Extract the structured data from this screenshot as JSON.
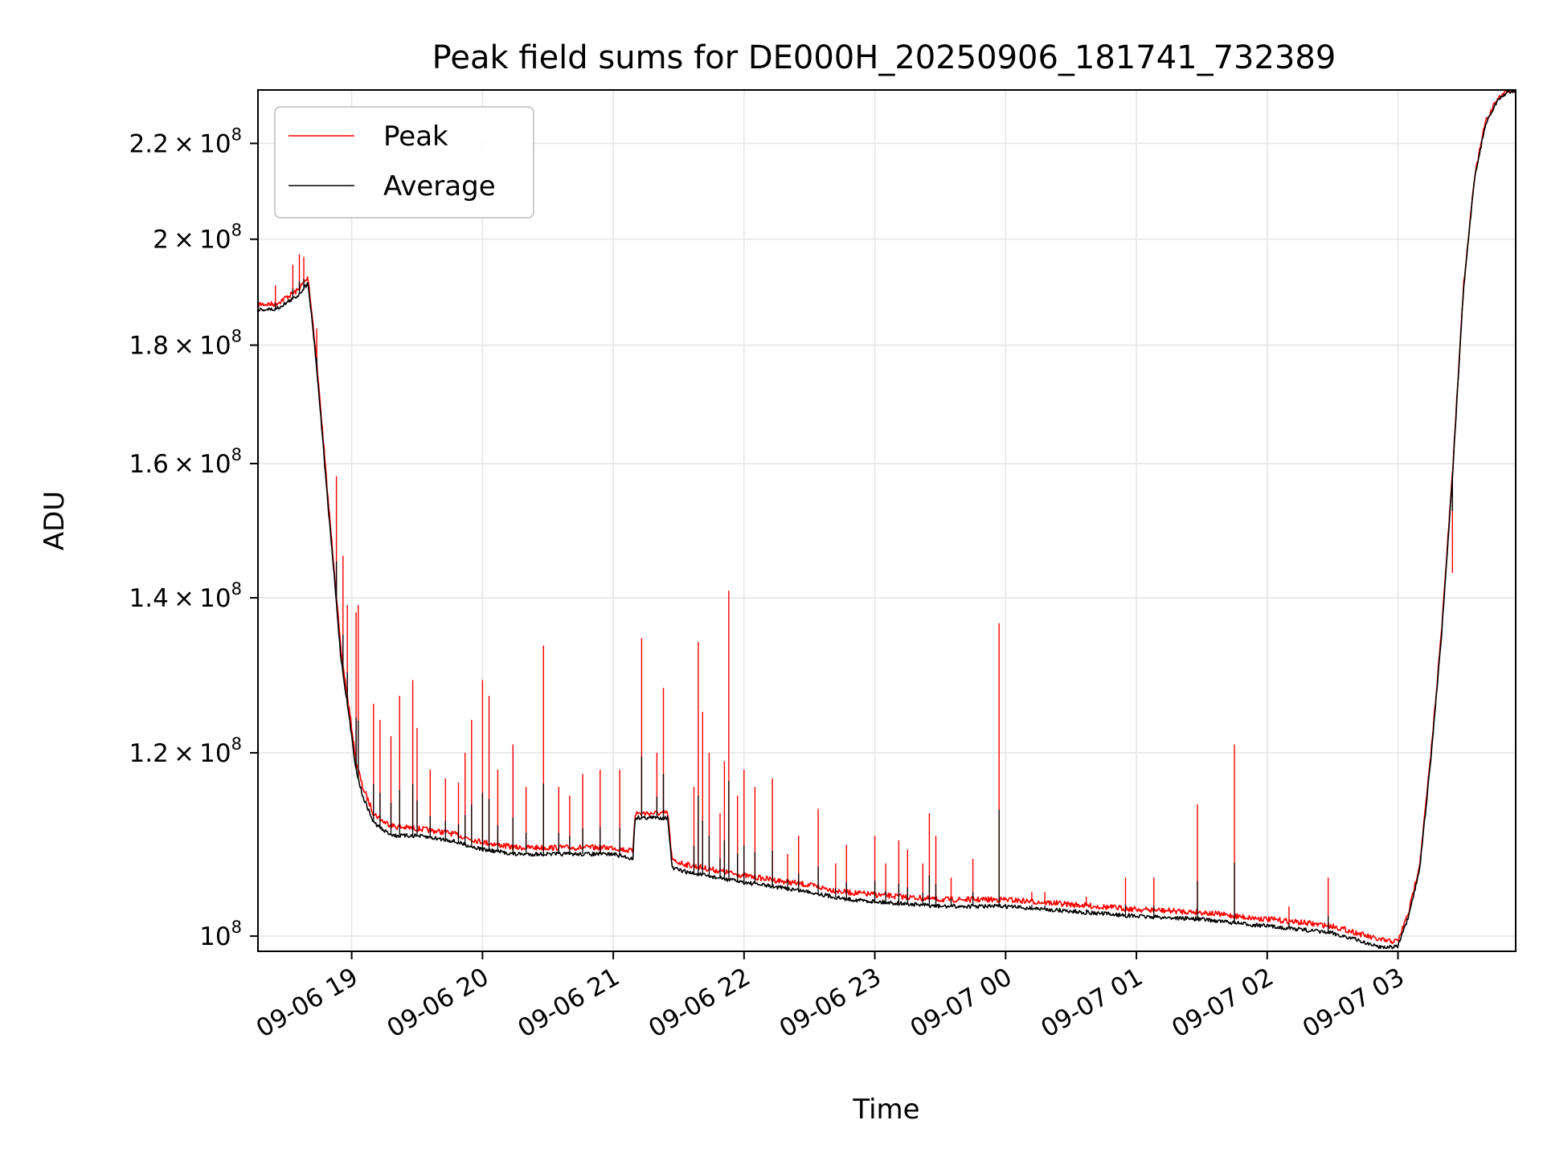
{
  "chart_data": {
    "type": "line",
    "title": "Peak field sums for DE000H_20250906_181741_732389",
    "xlabel": "Time",
    "ylabel": "ADU",
    "yscale": "log",
    "ylim": [
      98500000,
      232000000
    ],
    "xlim": [
      "2025-09-06 18:17",
      "2025-09-07 03:54"
    ],
    "grid": true,
    "legend_position": "top-left",
    "colors": {
      "Peak": "#ff0000",
      "Average": "#000000"
    },
    "x_ticks": [
      "09-06 19",
      "09-06 20",
      "09-06 21",
      "09-06 22",
      "09-06 23",
      "09-07 00",
      "09-07 01",
      "09-07 02",
      "09-07 03"
    ],
    "x_tick_times": [
      "2025-09-06 19:00",
      "2025-09-06 20:00",
      "2025-09-06 21:00",
      "2025-09-06 22:00",
      "2025-09-06 23:00",
      "2025-09-07 00:00",
      "2025-09-07 01:00",
      "2025-09-07 02:00",
      "2025-09-07 03:00"
    ],
    "y_ticks": [
      {
        "value": 100000000,
        "mantissa": "",
        "exp": "8"
      },
      {
        "value": 120000000,
        "mantissa": "1.2",
        "exp": "8"
      },
      {
        "value": 140000000,
        "mantissa": "1.4",
        "exp": "8"
      },
      {
        "value": 160000000,
        "mantissa": "1.6",
        "exp": "8"
      },
      {
        "value": 180000000,
        "mantissa": "1.8",
        "exp": "8"
      },
      {
        "value": 200000000,
        "mantissa": "2",
        "exp": "8"
      },
      {
        "value": 220000000,
        "mantissa": "2.2",
        "exp": "8"
      }
    ],
    "series": [
      {
        "name": "Average",
        "x": [
          "2025-09-06 18:17",
          "2025-09-06 18:25",
          "2025-09-06 18:35",
          "2025-09-06 18:40",
          "2025-09-06 18:43",
          "2025-09-06 18:46",
          "2025-09-06 18:49",
          "2025-09-06 18:52",
          "2025-09-06 18:55",
          "2025-09-06 18:59",
          "2025-09-06 19:02",
          "2025-09-06 19:05",
          "2025-09-06 19:10",
          "2025-09-06 19:15",
          "2025-09-06 19:20",
          "2025-09-06 19:30",
          "2025-09-06 19:45",
          "2025-09-06 20:00",
          "2025-09-06 20:15",
          "2025-09-06 20:30",
          "2025-09-06 20:45",
          "2025-09-06 21:00",
          "2025-09-06 21:09",
          "2025-09-06 21:10",
          "2025-09-06 21:25",
          "2025-09-06 21:27",
          "2025-09-06 21:35",
          "2025-09-06 22:00",
          "2025-09-06 22:30",
          "2025-09-06 22:45",
          "2025-09-06 23:00",
          "2025-09-06 23:30",
          "2025-09-07 00:00",
          "2025-09-07 00:30",
          "2025-09-07 01:00",
          "2025-09-07 01:30",
          "2025-09-07 01:50",
          "2025-09-07 02:10",
          "2025-09-07 02:30",
          "2025-09-07 02:40",
          "2025-09-07 02:50",
          "2025-09-07 02:55",
          "2025-09-07 03:00",
          "2025-09-07 03:05",
          "2025-09-07 03:10",
          "2025-09-07 03:15",
          "2025-09-07 03:20",
          "2025-09-07 03:25",
          "2025-09-07 03:30",
          "2025-09-07 03:35",
          "2025-09-07 03:40",
          "2025-09-07 03:45",
          "2025-09-07 03:50",
          "2025-09-07 03:54"
        ],
        "values": [
          186500000,
          186500000,
          189000000,
          191500000,
          180000000,
          167000000,
          154000000,
          143000000,
          132000000,
          124000000,
          118000000,
          115000000,
          112000000,
          111000000,
          110500000,
          110500000,
          110000000,
          109000000,
          108500000,
          108500000,
          108500000,
          108500000,
          108000000,
          112500000,
          112500000,
          107000000,
          106500000,
          105500000,
          104500000,
          103800000,
          103500000,
          103000000,
          103000000,
          102500000,
          102000000,
          101700000,
          101200000,
          100800000,
          100300000,
          99700000,
          99000000,
          98900000,
          99000000,
          102000000,
          107000000,
          119000000,
          135000000,
          158000000,
          190000000,
          212000000,
          224000000,
          229000000,
          231500000,
          232000000
        ]
      },
      {
        "name": "Peak",
        "x": [
          "2025-09-06 18:17",
          "2025-09-06 18:25",
          "2025-09-06 18:35",
          "2025-09-06 18:40",
          "2025-09-06 18:43",
          "2025-09-06 18:46",
          "2025-09-06 18:49",
          "2025-09-06 18:52",
          "2025-09-06 18:55",
          "2025-09-06 18:59",
          "2025-09-06 19:02",
          "2025-09-06 19:05",
          "2025-09-06 19:10",
          "2025-09-06 19:15",
          "2025-09-06 19:20",
          "2025-09-06 19:30",
          "2025-09-06 19:45",
          "2025-09-06 20:00",
          "2025-09-06 20:15",
          "2025-09-06 20:30",
          "2025-09-06 20:45",
          "2025-09-06 21:00",
          "2025-09-06 21:09",
          "2025-09-06 21:10",
          "2025-09-06 21:25",
          "2025-09-06 21:27",
          "2025-09-06 21:35",
          "2025-09-06 22:00",
          "2025-09-06 22:30",
          "2025-09-06 22:45",
          "2025-09-06 23:00",
          "2025-09-06 23:30",
          "2025-09-07 00:00",
          "2025-09-07 00:30",
          "2025-09-07 01:00",
          "2025-09-07 01:30",
          "2025-09-07 01:50",
          "2025-09-07 02:10",
          "2025-09-07 02:30",
          "2025-09-07 02:40",
          "2025-09-07 02:50",
          "2025-09-07 02:55",
          "2025-09-07 03:00",
          "2025-09-07 03:05",
          "2025-09-07 03:10",
          "2025-09-07 03:15",
          "2025-09-07 03:20",
          "2025-09-07 03:25",
          "2025-09-07 03:30",
          "2025-09-07 03:35",
          "2025-09-07 03:40",
          "2025-09-07 03:45",
          "2025-09-07 03:50",
          "2025-09-07 03:54"
        ],
        "values": [
          187500000,
          187500000,
          190000000,
          192500000,
          181000000,
          168000000,
          155000000,
          144000000,
          133000000,
          125000000,
          119000000,
          116000000,
          113000000,
          112000000,
          111500000,
          111300000,
          110800000,
          109800000,
          109200000,
          109200000,
          109200000,
          109200000,
          108800000,
          113000000,
          113000000,
          107800000,
          107300000,
          106200000,
          105200000,
          104500000,
          104200000,
          103700000,
          103700000,
          103200000,
          102700000,
          102400000,
          101900000,
          101500000,
          101000000,
          100400000,
          99700000,
          99500000,
          99500000,
          102500000,
          107500000,
          119500000,
          135500000,
          158500000,
          190500000,
          212500000,
          224500000,
          229500000,
          232000000,
          232000000
        ]
      }
    ],
    "peak_spikes": [
      {
        "t": "2025-09-06 18:25",
        "v": 191000000
      },
      {
        "t": "2025-09-06 18:33",
        "v": 195000000
      },
      {
        "t": "2025-09-06 18:36",
        "v": 197000000
      },
      {
        "t": "2025-09-06 18:38",
        "v": 196500000
      },
      {
        "t": "2025-09-06 18:44",
        "v": 183000000
      },
      {
        "t": "2025-09-06 18:53",
        "v": 158000000
      },
      {
        "t": "2025-09-06 18:56",
        "v": 146000000
      },
      {
        "t": "2025-09-06 18:58",
        "v": 139000000
      },
      {
        "t": "2025-09-06 19:02",
        "v": 138000000
      },
      {
        "t": "2025-09-06 19:03",
        "v": 139000000
      },
      {
        "t": "2025-09-06 19:10",
        "v": 126000000
      },
      {
        "t": "2025-09-06 19:13",
        "v": 124000000
      },
      {
        "t": "2025-09-06 19:18",
        "v": 122000000
      },
      {
        "t": "2025-09-06 19:22",
        "v": 127000000
      },
      {
        "t": "2025-09-06 19:28",
        "v": 129000000
      },
      {
        "t": "2025-09-06 19:30",
        "v": 123000000
      },
      {
        "t": "2025-09-06 19:36",
        "v": 118000000
      },
      {
        "t": "2025-09-06 19:43",
        "v": 117000000
      },
      {
        "t": "2025-09-06 19:49",
        "v": 116500000
      },
      {
        "t": "2025-09-06 19:52",
        "v": 120000000
      },
      {
        "t": "2025-09-06 19:55",
        "v": 124000000
      },
      {
        "t": "2025-09-06 20:00",
        "v": 129000000
      },
      {
        "t": "2025-09-06 20:03",
        "v": 127000000
      },
      {
        "t": "2025-09-06 20:07",
        "v": 118000000
      },
      {
        "t": "2025-09-06 20:14",
        "v": 121000000
      },
      {
        "t": "2025-09-06 20:20",
        "v": 116000000
      },
      {
        "t": "2025-09-06 20:28",
        "v": 133500000
      },
      {
        "t": "2025-09-06 20:35",
        "v": 116000000
      },
      {
        "t": "2025-09-06 20:40",
        "v": 115000000
      },
      {
        "t": "2025-09-06 20:46",
        "v": 117500000
      },
      {
        "t": "2025-09-06 20:54",
        "v": 118000000
      },
      {
        "t": "2025-09-06 21:03",
        "v": 118000000
      },
      {
        "t": "2025-09-06 21:13",
        "v": 134500000
      },
      {
        "t": "2025-09-06 21:20",
        "v": 120000000
      },
      {
        "t": "2025-09-06 21:23",
        "v": 128000000
      },
      {
        "t": "2025-09-06 21:37",
        "v": 116000000
      },
      {
        "t": "2025-09-06 21:39",
        "v": 134000000
      },
      {
        "t": "2025-09-06 21:41",
        "v": 125000000
      },
      {
        "t": "2025-09-06 21:44",
        "v": 120000000
      },
      {
        "t": "2025-09-06 21:49",
        "v": 113000000
      },
      {
        "t": "2025-09-06 21:51",
        "v": 119000000
      },
      {
        "t": "2025-09-06 21:53",
        "v": 141000000
      },
      {
        "t": "2025-09-06 21:57",
        "v": 115000000
      },
      {
        "t": "2025-09-06 22:00",
        "v": 118000000
      },
      {
        "t": "2025-09-06 22:05",
        "v": 116000000
      },
      {
        "t": "2025-09-06 22:13",
        "v": 117000000
      },
      {
        "t": "2025-09-06 22:20",
        "v": 108500000
      },
      {
        "t": "2025-09-06 22:25",
        "v": 110500000
      },
      {
        "t": "2025-09-06 22:34",
        "v": 113500000
      },
      {
        "t": "2025-09-06 22:42",
        "v": 107500000
      },
      {
        "t": "2025-09-06 22:47",
        "v": 109500000
      },
      {
        "t": "2025-09-06 23:00",
        "v": 110500000
      },
      {
        "t": "2025-09-06 23:05",
        "v": 107500000
      },
      {
        "t": "2025-09-06 23:11",
        "v": 110000000
      },
      {
        "t": "2025-09-06 23:15",
        "v": 109000000
      },
      {
        "t": "2025-09-06 23:22",
        "v": 107500000
      },
      {
        "t": "2025-09-06 23:25",
        "v": 113000000
      },
      {
        "t": "2025-09-06 23:28",
        "v": 110500000
      },
      {
        "t": "2025-09-06 23:35",
        "v": 106000000
      },
      {
        "t": "2025-09-06 23:45",
        "v": 108000000
      },
      {
        "t": "2025-09-06 23:57",
        "v": 136500000
      },
      {
        "t": "2025-09-07 00:12",
        "v": 104500000
      },
      {
        "t": "2025-09-07 00:18",
        "v": 104500000
      },
      {
        "t": "2025-09-07 00:37",
        "v": 104000000
      },
      {
        "t": "2025-09-07 00:55",
        "v": 106000000
      },
      {
        "t": "2025-09-07 01:08",
        "v": 106000000
      },
      {
        "t": "2025-09-07 01:28",
        "v": 114000000
      },
      {
        "t": "2025-09-07 01:45",
        "v": 121000000
      },
      {
        "t": "2025-09-07 02:10",
        "v": 103000000
      },
      {
        "t": "2025-09-07 02:28",
        "v": 106000000
      },
      {
        "t": "2025-09-07 03:25",
        "v": 143500000
      }
    ],
    "legend_entries": [
      "Peak",
      "Average"
    ]
  }
}
